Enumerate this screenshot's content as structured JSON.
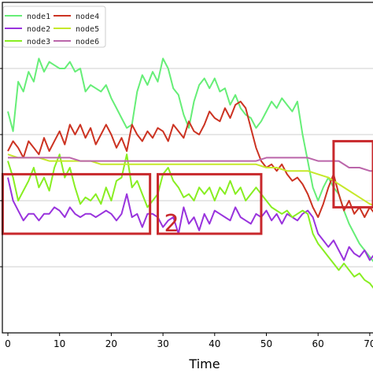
{
  "chart_data": {
    "type": "line",
    "xlabel": "Time",
    "ylabel": "",
    "xlim": [
      0,
      72
    ],
    "ylim": [
      0,
      1
    ],
    "xticks": [
      0,
      10,
      20,
      30,
      40,
      50,
      60,
      70
    ],
    "xtick_labels": [
      "0",
      "10",
      "20",
      "30",
      "40",
      "50",
      "60",
      "70"
    ],
    "grid": "horizontal",
    "legend": "top-left",
    "series": [
      {
        "name": "node1",
        "color": "#66ee77",
        "x": [
          0,
          1,
          2,
          3,
          4,
          5,
          6,
          7,
          8,
          9,
          10,
          11,
          12,
          13,
          14,
          15,
          16,
          17,
          18,
          19,
          20,
          21,
          22,
          23,
          24,
          25,
          26,
          27,
          28,
          29,
          30,
          31,
          32,
          33,
          34,
          35,
          36,
          37,
          38,
          39,
          40,
          41,
          42,
          43,
          44,
          45,
          46,
          47,
          48,
          49,
          50,
          51,
          52,
          53,
          54,
          55,
          56,
          57,
          58,
          59,
          60,
          61,
          62,
          63,
          64,
          65,
          66,
          67,
          68,
          69,
          70,
          71,
          72
        ],
        "y": [
          0.67,
          0.61,
          0.76,
          0.73,
          0.79,
          0.76,
          0.83,
          0.79,
          0.82,
          0.81,
          0.8,
          0.8,
          0.82,
          0.79,
          0.8,
          0.73,
          0.75,
          0.74,
          0.73,
          0.75,
          0.71,
          0.68,
          0.65,
          0.62,
          0.63,
          0.73,
          0.78,
          0.75,
          0.79,
          0.76,
          0.83,
          0.8,
          0.74,
          0.72,
          0.66,
          0.62,
          0.7,
          0.75,
          0.77,
          0.74,
          0.77,
          0.73,
          0.74,
          0.69,
          0.72,
          0.68,
          0.66,
          0.65,
          0.62,
          0.64,
          0.67,
          0.7,
          0.68,
          0.71,
          0.69,
          0.67,
          0.7,
          0.6,
          0.52,
          0.44,
          0.4,
          0.44,
          0.47,
          0.44,
          0.42,
          0.37,
          0.33,
          0.3,
          0.27,
          0.25,
          0.23,
          0.21,
          0.2
        ]
      },
      {
        "name": "node2",
        "color": "#9933dd",
        "x": [
          0,
          1,
          2,
          3,
          4,
          5,
          6,
          7,
          8,
          9,
          10,
          11,
          12,
          13,
          14,
          15,
          16,
          17,
          18,
          19,
          20,
          21,
          22,
          23,
          24,
          25,
          26,
          27,
          28,
          29,
          30,
          31,
          32,
          33,
          34,
          35,
          36,
          37,
          38,
          39,
          40,
          41,
          42,
          43,
          44,
          45,
          46,
          47,
          48,
          49,
          50,
          51,
          52,
          53,
          54,
          55,
          56,
          57,
          58,
          59,
          60,
          61,
          62,
          63,
          64,
          65,
          66,
          67,
          68,
          69,
          70,
          71,
          72
        ],
        "y": [
          0.47,
          0.4,
          0.37,
          0.34,
          0.36,
          0.36,
          0.34,
          0.36,
          0.36,
          0.38,
          0.37,
          0.35,
          0.38,
          0.36,
          0.35,
          0.36,
          0.36,
          0.35,
          0.36,
          0.37,
          0.36,
          0.34,
          0.36,
          0.42,
          0.35,
          0.36,
          0.32,
          0.36,
          0.36,
          0.35,
          0.32,
          0.34,
          0.35,
          0.3,
          0.38,
          0.33,
          0.35,
          0.31,
          0.36,
          0.33,
          0.37,
          0.36,
          0.35,
          0.34,
          0.38,
          0.35,
          0.34,
          0.33,
          0.36,
          0.35,
          0.37,
          0.34,
          0.36,
          0.33,
          0.36,
          0.35,
          0.34,
          0.36,
          0.37,
          0.35,
          0.3,
          0.28,
          0.26,
          0.28,
          0.25,
          0.22,
          0.26,
          0.24,
          0.23,
          0.25,
          0.22,
          0.24,
          0.23
        ]
      },
      {
        "name": "node3",
        "color": "#88ee22",
        "x": [
          0,
          1,
          2,
          3,
          4,
          5,
          6,
          7,
          8,
          9,
          10,
          11,
          12,
          13,
          14,
          15,
          16,
          17,
          18,
          19,
          20,
          21,
          22,
          23,
          24,
          25,
          26,
          27,
          28,
          29,
          30,
          31,
          32,
          33,
          34,
          35,
          36,
          37,
          38,
          39,
          40,
          41,
          42,
          43,
          44,
          45,
          46,
          47,
          48,
          49,
          50,
          51,
          52,
          53,
          54,
          55,
          56,
          57,
          58,
          59,
          60,
          61,
          62,
          63,
          64,
          65,
          66,
          67,
          68,
          69,
          70,
          71,
          72
        ],
        "y": [
          0.52,
          0.47,
          0.4,
          0.43,
          0.46,
          0.5,
          0.44,
          0.47,
          0.43,
          0.5,
          0.54,
          0.47,
          0.5,
          0.44,
          0.39,
          0.41,
          0.4,
          0.42,
          0.39,
          0.44,
          0.4,
          0.46,
          0.47,
          0.54,
          0.44,
          0.46,
          0.42,
          0.38,
          0.4,
          0.42,
          0.48,
          0.5,
          0.46,
          0.44,
          0.41,
          0.42,
          0.4,
          0.44,
          0.42,
          0.44,
          0.4,
          0.44,
          0.42,
          0.46,
          0.42,
          0.44,
          0.4,
          0.42,
          0.44,
          0.42,
          0.4,
          0.38,
          0.37,
          0.36,
          0.37,
          0.35,
          0.36,
          0.37,
          0.36,
          0.3,
          0.27,
          0.25,
          0.23,
          0.21,
          0.19,
          0.21,
          0.19,
          0.17,
          0.18,
          0.16,
          0.15,
          0.13,
          0.12
        ]
      },
      {
        "name": "node4",
        "color": "#cc3322",
        "x": [
          0,
          1,
          2,
          3,
          4,
          5,
          6,
          7,
          8,
          9,
          10,
          11,
          12,
          13,
          14,
          15,
          16,
          17,
          18,
          19,
          20,
          21,
          22,
          23,
          24,
          25,
          26,
          27,
          28,
          29,
          30,
          31,
          32,
          33,
          34,
          35,
          36,
          37,
          38,
          39,
          40,
          41,
          42,
          43,
          44,
          45,
          46,
          47,
          48,
          49,
          50,
          51,
          52,
          53,
          54,
          55,
          56,
          57,
          58,
          59,
          60,
          61,
          62,
          63,
          64,
          65,
          66,
          67,
          68,
          69,
          70,
          71,
          72
        ],
        "y": [
          0.55,
          0.58,
          0.56,
          0.53,
          0.58,
          0.56,
          0.54,
          0.59,
          0.55,
          0.58,
          0.61,
          0.57,
          0.63,
          0.6,
          0.63,
          0.59,
          0.62,
          0.57,
          0.6,
          0.63,
          0.6,
          0.56,
          0.59,
          0.55,
          0.63,
          0.6,
          0.58,
          0.61,
          0.59,
          0.62,
          0.61,
          0.58,
          0.63,
          0.61,
          0.59,
          0.64,
          0.61,
          0.6,
          0.63,
          0.67,
          0.65,
          0.64,
          0.68,
          0.65,
          0.69,
          0.7,
          0.68,
          0.62,
          0.56,
          0.52,
          0.5,
          0.51,
          0.49,
          0.51,
          0.48,
          0.46,
          0.47,
          0.45,
          0.42,
          0.38,
          0.35,
          0.39,
          0.44,
          0.48,
          0.42,
          0.37,
          0.4,
          0.36,
          0.38,
          0.35,
          0.38,
          0.36,
          0.37
        ]
      },
      {
        "name": "node5",
        "color": "#c6e82a",
        "x": [
          0,
          2,
          4,
          6,
          8,
          10,
          12,
          14,
          16,
          18,
          20,
          22,
          24,
          26,
          28,
          30,
          32,
          34,
          36,
          38,
          40,
          42,
          44,
          46,
          48,
          50,
          52,
          54,
          56,
          58,
          60,
          62,
          64,
          66,
          68,
          70,
          72
        ],
        "y": [
          0.54,
          0.53,
          0.53,
          0.53,
          0.52,
          0.52,
          0.52,
          0.52,
          0.52,
          0.51,
          0.51,
          0.51,
          0.51,
          0.51,
          0.51,
          0.51,
          0.51,
          0.51,
          0.51,
          0.51,
          0.51,
          0.51,
          0.51,
          0.51,
          0.51,
          0.5,
          0.5,
          0.49,
          0.49,
          0.49,
          0.48,
          0.47,
          0.45,
          0.43,
          0.41,
          0.39,
          0.38
        ]
      },
      {
        "name": "node6",
        "color": "#bb66aa",
        "x": [
          0,
          2,
          4,
          6,
          8,
          10,
          12,
          14,
          16,
          18,
          20,
          22,
          24,
          26,
          28,
          30,
          32,
          34,
          36,
          38,
          40,
          42,
          44,
          46,
          48,
          50,
          52,
          54,
          56,
          58,
          60,
          62,
          64,
          66,
          68,
          70,
          72
        ],
        "y": [
          0.53,
          0.53,
          0.53,
          0.53,
          0.53,
          0.53,
          0.53,
          0.52,
          0.52,
          0.52,
          0.52,
          0.52,
          0.52,
          0.52,
          0.52,
          0.52,
          0.52,
          0.52,
          0.52,
          0.52,
          0.52,
          0.52,
          0.52,
          0.52,
          0.52,
          0.53,
          0.53,
          0.53,
          0.53,
          0.53,
          0.52,
          0.52,
          0.52,
          0.5,
          0.5,
          0.49,
          0.49
        ]
      }
    ],
    "annotations": [
      {
        "label": "",
        "x_range": [
          -1,
          27.5
        ],
        "y_range": [
          0.3,
          0.48
        ],
        "color": "#c8282c"
      },
      {
        "label": "2",
        "x_range": [
          29,
          49
        ],
        "y_range": [
          0.3,
          0.48
        ],
        "color": "#c8282c"
      },
      {
        "label": "",
        "x_range": [
          63,
          73
        ],
        "y_range": [
          0.38,
          0.58
        ],
        "color": "#c8282c"
      }
    ]
  }
}
